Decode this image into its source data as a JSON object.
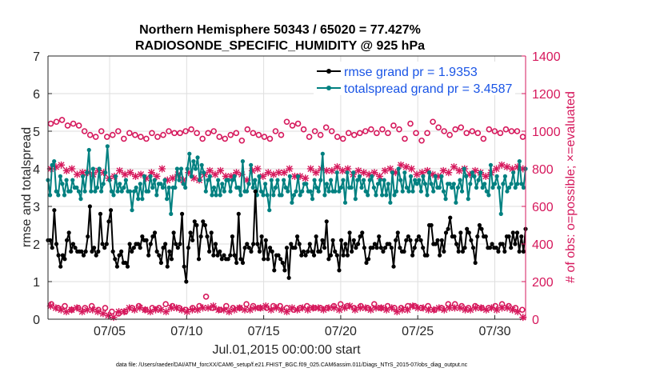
{
  "chart_data": {
    "type": "line",
    "title": [
      "Northern Hemisphere 50343 / 65020 = 77.427%",
      "RADIOSONDE_SPECIFIC_HUMIDITY @ 925 hPa"
    ],
    "xlabel": "Jul.01,2015 00:00:00 start",
    "ylabel_left": "rmse and totalspread",
    "ylabel_right": "# of obs: o=possible; ×=evaluated",
    "footnote": "data file: /Users/raeder/DAI/ATM_forcXX/CAM6_setup/f.e21.FHIST_BGC.f09_025.CAM6assim.011/Diags_NTrS_2015-07/obs_diag_output.nc",
    "xlim": [
      1,
      32
    ],
    "ylim_left": [
      0,
      7
    ],
    "ylim_right": [
      0,
      1400
    ],
    "x_ticks": [
      5,
      10,
      15,
      20,
      25,
      30
    ],
    "x_tick_labels": [
      "07/05",
      "07/10",
      "07/15",
      "07/20",
      "07/25",
      "07/30"
    ],
    "y_left_ticks": [
      "0",
      "1",
      "2",
      "3",
      "4",
      "5",
      "6",
      "7"
    ],
    "y_right_ticks": [
      "0",
      "200",
      "400",
      "600",
      "800",
      "1000",
      "1200",
      "1400"
    ],
    "colors": {
      "rmse": "#000000",
      "spread": "#008080",
      "obs": "#d6185c",
      "legend_text": "#1a55e6"
    },
    "series": [
      {
        "name": "rmse grand pr = 1.9353",
        "axis": "left",
        "values": [
          2.1,
          2.1,
          1.9,
          2.9,
          2.0,
          1.7,
          1.4,
          1.7,
          1.6,
          2.1,
          2.3,
          1.8,
          2.0,
          1.9,
          1.8,
          1.8,
          1.8,
          1.7,
          1.8,
          2.2,
          3.0,
          1.8,
          1.9,
          1.7,
          1.8,
          2.8,
          2.0,
          1.9,
          2.0,
          2.6,
          2.9,
          1.8,
          1.6,
          1.4,
          1.7,
          1.8,
          1.5,
          1.5,
          1.4,
          2.0,
          1.8,
          1.9,
          2.0,
          2.0,
          1.9,
          2.2,
          2.1,
          2.1,
          1.7,
          2.0,
          2.2,
          2.3,
          1.8,
          1.7,
          1.5,
          1.9,
          2.0,
          1.4,
          1.8,
          1.6,
          2.3,
          2.0,
          1.9,
          2.0,
          2.8,
          1.4,
          1.0,
          1.9,
          2.3,
          2.1,
          2.6,
          2.5,
          1.6,
          2.2,
          2.6,
          2.5,
          2.2,
          1.8,
          2.3,
          1.7,
          2.0,
          1.7,
          1.8,
          1.6,
          1.7,
          1.6,
          1.6,
          1.7,
          2.2,
          1.7,
          1.5,
          2.8,
          1.6,
          1.5,
          1.9,
          2.0,
          1.9,
          1.8,
          2.0,
          3.4,
          2.0,
          1.8,
          2.2,
          1.6,
          2.1,
          1.6,
          1.9,
          1.8,
          1.3,
          1.7,
          1.7,
          1.6,
          1.5,
          1.3,
          1.9,
          1.1,
          2.0,
          1.9,
          1.9,
          2.2,
          2.0,
          1.7,
          1.8,
          1.7,
          1.8,
          2.0,
          1.8,
          1.7,
          2.2,
          1.8,
          1.8,
          2.1,
          1.9,
          2.6,
          1.6,
          1.7,
          2.1,
          1.8,
          1.7,
          1.3,
          2.1,
          1.7,
          2.0,
          1.7,
          2.3,
          1.8,
          2.1,
          1.9,
          2.0,
          2.2,
          2.3,
          1.9,
          1.5,
          1.6,
          1.9,
          1.9,
          2.0,
          1.9,
          2.2,
          1.9,
          1.8,
          1.9,
          2.0,
          2.0,
          1.9,
          1.4,
          2.1,
          2.3,
          1.9,
          1.8,
          1.8,
          2.1,
          2.2,
          2.1,
          1.7,
          1.9,
          2.1,
          2.2,
          2.1,
          1.9,
          1.7,
          1.7,
          2.5,
          2.5,
          2.0,
          2.0,
          2.1,
          1.7,
          2.1,
          1.8,
          2.3,
          2.4,
          2.7,
          2.2,
          2.2,
          2.0,
          1.8,
          2.3,
          1.8,
          1.9,
          2.4,
          2.3,
          2.1,
          1.9,
          1.5,
          2.2,
          2.5,
          2.4,
          2.2,
          2.2,
          1.9,
          1.9,
          2.0,
          1.9,
          1.9,
          1.8,
          2.0,
          2.0,
          1.8,
          2.2,
          2.2,
          1.9,
          2.3,
          2.0,
          2.3,
          1.8,
          2.2,
          1.8,
          2.4
        ]
      },
      {
        "name": "totalspread grand pr = 3.4587",
        "axis": "left",
        "values": [
          3.7,
          3.3,
          4.1,
          4.2,
          3.4,
          3.3,
          3.8,
          3.6,
          3.3,
          3.7,
          3.4,
          3.4,
          3.7,
          3.5,
          3.5,
          3.4,
          3.2,
          3.8,
          3.4,
          3.9,
          4.5,
          3.4,
          4.0,
          3.4,
          3.5,
          4.0,
          3.4,
          3.6,
          3.9,
          4.6,
          3.7,
          3.4,
          3.3,
          3.8,
          3.4,
          3.6,
          3.4,
          3.5,
          3.7,
          3.4,
          3.4,
          2.9,
          3.4,
          3.5,
          3.2,
          3.6,
          3.2,
          3.8,
          3.4,
          3.4,
          3.8,
          3.5,
          3.7,
          3.3,
          3.6,
          3.6,
          3.5,
          3.7,
          3.2,
          3.5,
          2.8,
          3.5,
          3.5,
          4.0,
          3.7,
          4.0,
          3.6,
          3.5,
          4.0,
          4.4,
          3.8,
          4.2,
          4.0,
          4.3,
          3.7,
          4.1,
          3.9,
          3.4,
          3.7,
          3.8,
          3.3,
          3.5,
          3.3,
          3.7,
          3.3,
          3.6,
          3.4,
          3.7,
          3.7,
          3.4,
          3.7,
          3.8,
          3.5,
          3.5,
          3.3,
          4.2,
          3.4,
          3.4,
          3.6,
          4.1,
          3.5,
          3.7,
          3.3,
          3.8,
          3.4,
          3.3,
          3.6,
          3.3,
          2.9,
          3.7,
          3.3,
          3.5,
          3.7,
          3.3,
          3.3,
          3.7,
          3.5,
          3.4,
          3.8,
          3.1,
          3.3,
          3.4,
          3.8,
          3.3,
          3.4,
          3.6,
          3.6,
          3.4,
          3.4,
          3.2,
          3.7,
          3.5,
          3.4,
          3.7,
          4.4,
          3.3,
          3.6,
          3.4,
          3.7,
          3.4,
          3.4,
          3.9,
          3.4,
          3.5,
          3.7,
          3.1,
          3.9,
          3.5,
          3.5,
          3.9,
          3.2,
          3.7,
          3.8,
          3.5,
          3.7,
          3.4,
          3.3,
          3.7,
          3.8,
          3.5,
          3.3,
          3.6,
          3.7,
          3.3,
          3.7,
          3.3,
          3.6,
          3.1,
          3.9,
          3.3,
          3.4,
          4.0,
          3.7,
          3.4,
          3.9,
          3.5,
          3.4,
          3.8,
          3.4,
          3.7,
          3.6,
          3.7,
          3.4,
          3.8,
          3.6,
          3.3,
          3.9,
          3.6,
          3.4,
          3.8,
          3.5,
          3.5,
          3.8,
          3.4,
          3.2,
          3.6,
          3.6,
          3.5,
          3.6,
          3.1,
          3.5,
          3.7,
          3.4,
          4.0,
          3.8,
          3.2,
          3.6,
          3.9,
          3.8,
          3.5,
          3.7,
          3.9,
          3.5,
          3.6,
          3.4,
          3.3,
          4.1,
          3.5,
          3.6,
          3.8,
          3.5,
          2.8,
          3.6,
          3.8,
          3.4,
          3.5,
          3.6,
          3.9,
          3.5,
          3.6,
          4.2,
          3.6,
          3.5,
          4.0
        ]
      }
    ],
    "obs_series": [
      {
        "name": "possible",
        "marker": "o",
        "axis": "right",
        "values": [
          1040,
          1050,
          1060,
          1030,
          1040,
          1030,
          1000,
          980,
          970,
          1000,
          970,
          980,
          1000,
          960,
          990,
          980,
          970,
          960,
          990,
          970,
          980,
          1000,
          990,
          990,
          1000,
          1010,
          990,
          960,
          990,
          1000,
          970,
          960,
          980,
          990,
          950,
          1010,
          990,
          980,
          970,
          960,
          1000,
          980,
          1050,
          1030,
          1040,
          1010,
          970,
          1000,
          980,
          1020,
          1000,
          970,
          960,
          990,
          980,
          990,
          1000,
          1010,
          990,
          1010,
          990,
          1030,
          1010,
          960,
          1040,
          990,
          950,
          990,
          1050,
          1020,
          1000,
          980,
          1010,
          1020,
          990,
          1000,
          990,
          960,
          1010,
          1000,
          990,
          1010,
          1000,
          1000,
          970
        ]
      },
      {
        "name": "evaluated",
        "marker": "x",
        "axis": "right",
        "values": [
          800,
          810,
          820,
          790,
          800,
          770,
          780,
          780,
          770,
          790,
          780,
          750,
          760,
          790,
          770,
          780,
          760,
          770,
          750,
          780,
          760,
          800,
          740,
          750,
          770,
          740,
          780,
          750,
          740,
          770,
          790,
          770,
          790,
          760,
          760,
          780,
          770,
          740,
          790,
          800,
          760,
          780,
          770,
          780,
          780,
          800,
          760,
          760,
          750,
          800,
          780,
          800,
          790,
          790,
          810,
          790,
          800,
          770,
          790,
          780,
          770,
          780,
          760,
          790,
          800,
          780,
          820,
          810,
          800,
          770,
          780,
          790,
          770,
          760,
          790,
          780,
          810,
          790,
          800,
          770,
          790,
          780,
          760,
          780,
          800,
          820,
          810,
          800,
          810,
          800
        ]
      },
      {
        "name": "possible_low",
        "marker": "o",
        "axis": "right",
        "values": [
          80,
          60,
          70,
          50,
          60,
          60,
          70,
          50,
          60,
          40,
          30,
          40,
          60,
          70,
          50,
          60,
          60,
          80,
          70,
          60,
          50,
          60,
          70,
          120,
          60,
          50,
          70,
          60,
          60,
          80,
          70,
          60,
          60,
          70,
          70,
          60,
          50,
          60,
          70,
          60,
          60,
          60,
          70,
          80,
          70,
          60,
          70,
          60,
          80,
          60,
          70,
          60,
          60,
          70,
          70,
          60,
          70,
          50,
          60,
          80,
          80,
          70,
          60,
          70,
          60,
          60,
          70,
          80,
          70,
          60,
          50
        ]
      },
      {
        "name": "evaluated_low",
        "marker": "x",
        "axis": "right",
        "values": [
          70,
          60,
          50,
          40,
          50,
          60,
          40,
          50,
          50,
          40,
          30,
          20,
          10,
          40,
          40,
          60,
          50,
          60,
          50,
          40,
          50,
          50,
          40,
          60,
          60,
          50,
          40,
          50,
          50,
          60,
          60,
          70,
          50,
          50,
          40,
          50,
          60,
          50,
          50,
          60,
          60,
          70,
          50,
          60,
          50,
          40,
          60,
          50,
          60,
          50,
          60,
          60,
          50,
          60,
          60,
          50,
          60,
          70,
          50,
          60,
          60,
          50,
          60,
          60,
          50,
          60,
          40,
          50,
          50,
          70,
          60,
          60,
          50,
          50,
          60,
          50,
          60,
          60,
          60,
          50,
          50,
          60,
          60,
          50,
          60,
          50,
          60,
          60,
          50,
          40,
          10
        ]
      }
    ]
  }
}
